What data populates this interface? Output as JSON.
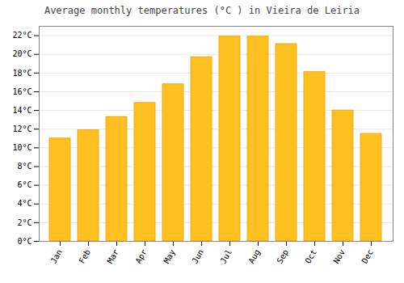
{
  "chart_data": {
    "type": "bar",
    "title": "Average monthly temperatures (°C ) in Vieira de Leiria",
    "categories": [
      "Jan",
      "Feb",
      "Mar",
      "Apr",
      "May",
      "Jun",
      "Jul",
      "Aug",
      "Sep",
      "Oct",
      "Nov",
      "Dec"
    ],
    "values": [
      11.0,
      11.9,
      13.3,
      14.8,
      16.8,
      19.7,
      21.9,
      21.9,
      21.1,
      18.1,
      14.0,
      11.5
    ],
    "color": "#FFC020",
    "ylim": [
      0,
      23
    ],
    "yticks": [
      {
        "value": 0,
        "label": "0°C"
      },
      {
        "value": 2,
        "label": "2°C"
      },
      {
        "value": 4,
        "label": "4°C"
      },
      {
        "value": 6,
        "label": "6°C"
      },
      {
        "value": 8,
        "label": "8°C"
      },
      {
        "value": 10,
        "label": "10°C"
      },
      {
        "value": 12,
        "label": "12°C"
      },
      {
        "value": 14,
        "label": "14°C"
      },
      {
        "value": 16,
        "label": "16°C"
      },
      {
        "value": 18,
        "label": "18°C"
      },
      {
        "value": 20,
        "label": "20°C"
      },
      {
        "value": 22,
        "label": "22°C"
      }
    ],
    "grid": true
  }
}
